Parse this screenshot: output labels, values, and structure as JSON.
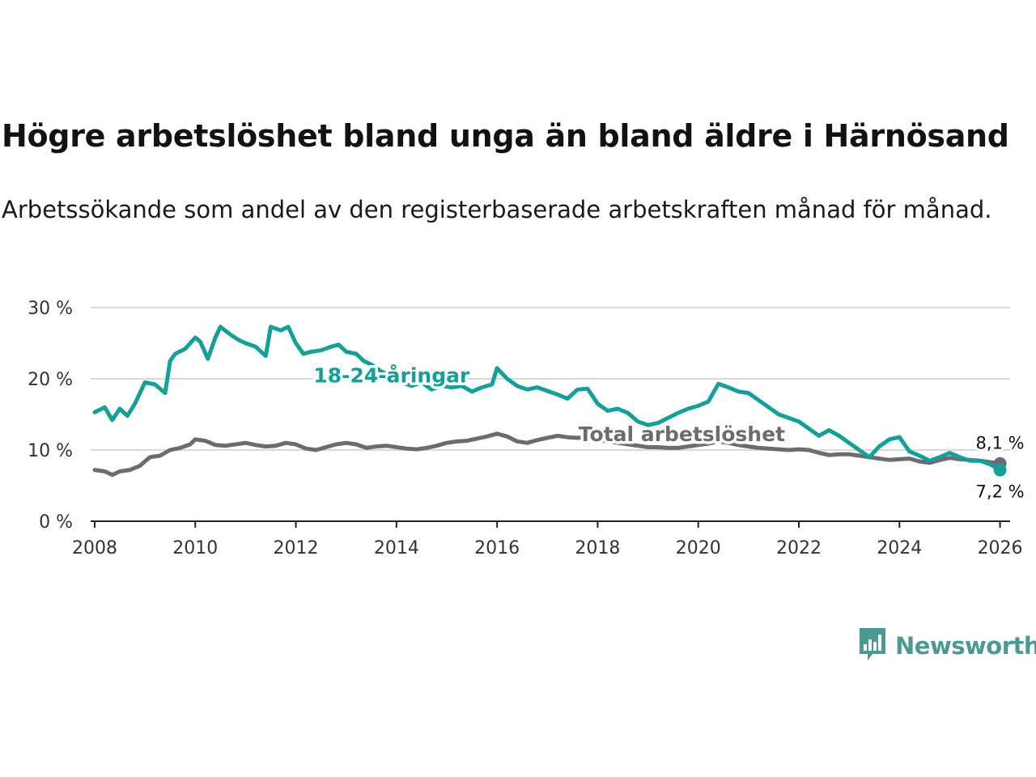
{
  "header": {
    "title": "Högre arbetslöshet bland unga än bland äldre i Härnösand",
    "subtitle": "Arbetssökande som andel av den registerbaserade arbetskraften månad för månad."
  },
  "brand": {
    "name": "Newsworthy",
    "logo_icon": "newsworthy-chart-icon",
    "color": "#4a9a92"
  },
  "colors": {
    "youth": "#14a098",
    "total": "#6d6a70",
    "grid": "#d9d9d9",
    "axis": "#222222"
  },
  "chart_data": {
    "type": "line",
    "title": "Högre arbetslöshet bland unga än bland äldre i Härnösand",
    "xlabel": "",
    "ylabel": "",
    "ylim": [
      0,
      30
    ],
    "xlim": [
      2007.92,
      2026.2
    ],
    "y_ticks": [
      {
        "value": 0,
        "label": "0 %"
      },
      {
        "value": 10,
        "label": "10 %"
      },
      {
        "value": 20,
        "label": "20 %"
      },
      {
        "value": 30,
        "label": "30 %"
      }
    ],
    "x_ticks": [
      {
        "value": 2008,
        "label": "2008"
      },
      {
        "value": 2010,
        "label": "2010"
      },
      {
        "value": 2012,
        "label": "2012"
      },
      {
        "value": 2014,
        "label": "2014"
      },
      {
        "value": 2016,
        "label": "2016"
      },
      {
        "value": 2018,
        "label": "2018"
      },
      {
        "value": 2020,
        "label": "2020"
      },
      {
        "value": 2022,
        "label": "2022"
      },
      {
        "value": 2024,
        "label": "2024"
      },
      {
        "value": 2026,
        "label": "2026"
      }
    ],
    "grid": true,
    "series": [
      {
        "name": "18-24-åringar",
        "label": "18-24-åringar",
        "color": "#14a098",
        "end_label": "7,2 %",
        "label_at": [
          2012.35,
          20.5
        ],
        "x": [
          2008.0,
          2008.2,
          2008.35,
          2008.5,
          2008.65,
          2008.8,
          2009.0,
          2009.2,
          2009.4,
          2009.5,
          2009.6,
          2009.8,
          2010.0,
          2010.1,
          2010.25,
          2010.4,
          2010.5,
          2010.7,
          2010.85,
          2011.0,
          2011.2,
          2011.4,
          2011.5,
          2011.7,
          2011.85,
          2012.0,
          2012.15,
          2012.3,
          2012.5,
          2012.7,
          2012.85,
          2013.0,
          2013.2,
          2013.35,
          2013.5,
          2013.7,
          2013.9,
          2014.1,
          2014.3,
          2014.5,
          2014.7,
          2014.9,
          2015.1,
          2015.3,
          2015.5,
          2015.7,
          2015.9,
          2016.0,
          2016.2,
          2016.4,
          2016.6,
          2016.8,
          2017.0,
          2017.2,
          2017.4,
          2017.6,
          2017.8,
          2018.0,
          2018.2,
          2018.4,
          2018.6,
          2018.8,
          2019.0,
          2019.2,
          2019.4,
          2019.6,
          2019.8,
          2020.0,
          2020.2,
          2020.4,
          2020.6,
          2020.8,
          2021.0,
          2021.2,
          2021.4,
          2021.6,
          2021.8,
          2022.0,
          2022.2,
          2022.4,
          2022.6,
          2022.8,
          2023.0,
          2023.2,
          2023.4,
          2023.6,
          2023.8,
          2024.0,
          2024.2,
          2024.4,
          2024.6,
          2024.8,
          2025.0,
          2025.2,
          2025.4,
          2025.6,
          2025.8,
          2026.0
        ],
        "values": [
          15.3,
          16.0,
          14.2,
          15.8,
          14.8,
          16.5,
          19.5,
          19.2,
          18.0,
          22.5,
          23.5,
          24.2,
          25.8,
          25.2,
          22.8,
          25.8,
          27.3,
          26.2,
          25.5,
          25.0,
          24.5,
          23.2,
          27.3,
          26.8,
          27.3,
          25.0,
          23.5,
          23.8,
          24.0,
          24.5,
          24.8,
          23.8,
          23.5,
          22.5,
          22.0,
          21.0,
          20.5,
          19.5,
          19.0,
          19.5,
          18.5,
          19.0,
          18.8,
          19.0,
          18.2,
          18.8,
          19.2,
          21.5,
          20.0,
          19.0,
          18.5,
          18.8,
          18.3,
          17.8,
          17.2,
          18.5,
          18.6,
          16.5,
          15.5,
          15.8,
          15.2,
          14.0,
          13.5,
          13.8,
          14.5,
          15.2,
          15.8,
          16.2,
          16.8,
          19.3,
          18.8,
          18.2,
          18.0,
          17.0,
          16.0,
          15.0,
          14.5,
          14.0,
          13.0,
          12.0,
          12.8,
          12.0,
          11.0,
          10.0,
          9.0,
          10.5,
          11.5,
          11.8,
          9.8,
          9.2,
          8.5,
          9.0,
          9.6,
          9.0,
          8.5,
          8.5,
          8.0,
          7.2
        ]
      },
      {
        "name": "Total arbetslöshet",
        "label": "Total arbetslöshet",
        "color": "#6d6a70",
        "end_label": "8,1 %",
        "label_at": [
          2017.62,
          12.3
        ],
        "x": [
          2008.0,
          2008.2,
          2008.35,
          2008.5,
          2008.7,
          2008.9,
          2009.1,
          2009.3,
          2009.5,
          2009.7,
          2009.9,
          2010.0,
          2010.2,
          2010.4,
          2010.6,
          2010.8,
          2011.0,
          2011.2,
          2011.4,
          2011.6,
          2011.8,
          2012.0,
          2012.2,
          2012.4,
          2012.6,
          2012.8,
          2013.0,
          2013.2,
          2013.4,
          2013.6,
          2013.8,
          2014.0,
          2014.2,
          2014.4,
          2014.6,
          2014.8,
          2015.0,
          2015.2,
          2015.4,
          2015.6,
          2015.8,
          2016.0,
          2016.2,
          2016.4,
          2016.6,
          2016.8,
          2017.0,
          2017.2,
          2017.4,
          2017.6,
          2017.8,
          2018.0,
          2018.2,
          2018.4,
          2018.6,
          2018.8,
          2019.0,
          2019.2,
          2019.4,
          2019.6,
          2019.8,
          2020.0,
          2020.2,
          2020.4,
          2020.6,
          2020.8,
          2021.0,
          2021.2,
          2021.4,
          2021.6,
          2021.8,
          2022.0,
          2022.2,
          2022.4,
          2022.6,
          2022.8,
          2023.0,
          2023.2,
          2023.4,
          2023.6,
          2023.8,
          2024.0,
          2024.2,
          2024.4,
          2024.6,
          2024.8,
          2025.0,
          2025.2,
          2025.4,
          2025.6,
          2025.8,
          2026.0
        ],
        "values": [
          7.2,
          7.0,
          6.5,
          7.0,
          7.2,
          7.8,
          9.0,
          9.2,
          10.0,
          10.3,
          10.8,
          11.5,
          11.3,
          10.7,
          10.6,
          10.8,
          11.0,
          10.7,
          10.5,
          10.6,
          11.0,
          10.8,
          10.2,
          10.0,
          10.4,
          10.8,
          11.0,
          10.8,
          10.3,
          10.5,
          10.6,
          10.4,
          10.2,
          10.1,
          10.3,
          10.6,
          11.0,
          11.2,
          11.3,
          11.6,
          11.9,
          12.3,
          11.9,
          11.2,
          11.0,
          11.4,
          11.7,
          12.0,
          11.8,
          11.7,
          11.8,
          11.5,
          11.2,
          11.0,
          10.8,
          10.6,
          10.4,
          10.4,
          10.3,
          10.3,
          10.5,
          10.7,
          10.9,
          11.2,
          11.0,
          10.7,
          10.5,
          10.3,
          10.2,
          10.1,
          10.0,
          10.1,
          10.0,
          9.6,
          9.3,
          9.4,
          9.4,
          9.2,
          9.0,
          8.8,
          8.6,
          8.7,
          8.8,
          8.4,
          8.2,
          8.6,
          8.9,
          8.7,
          8.6,
          8.5,
          8.3,
          8.1
        ]
      }
    ]
  }
}
